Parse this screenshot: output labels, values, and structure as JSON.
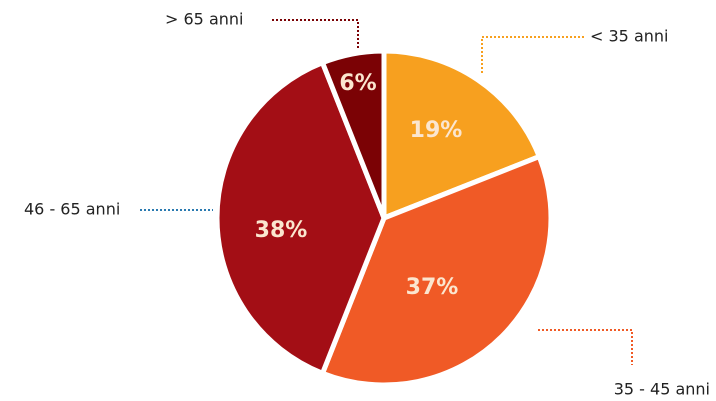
{
  "chart_data": {
    "type": "pie",
    "categories": [
      "< 35 anni",
      "35 - 45 anni",
      "46 - 65 anni",
      "> 65 anni"
    ],
    "values": [
      19,
      37,
      38,
      6
    ],
    "value_labels": [
      "19%",
      "37%",
      "38%",
      "6%"
    ],
    "colors": [
      "#f7a01f",
      "#f05a26",
      "#a30e15",
      "#7b0205"
    ],
    "leader_colors": [
      "#f7a01f",
      "#f05a26",
      "#2a7ab0",
      "#7b0205"
    ]
  }
}
